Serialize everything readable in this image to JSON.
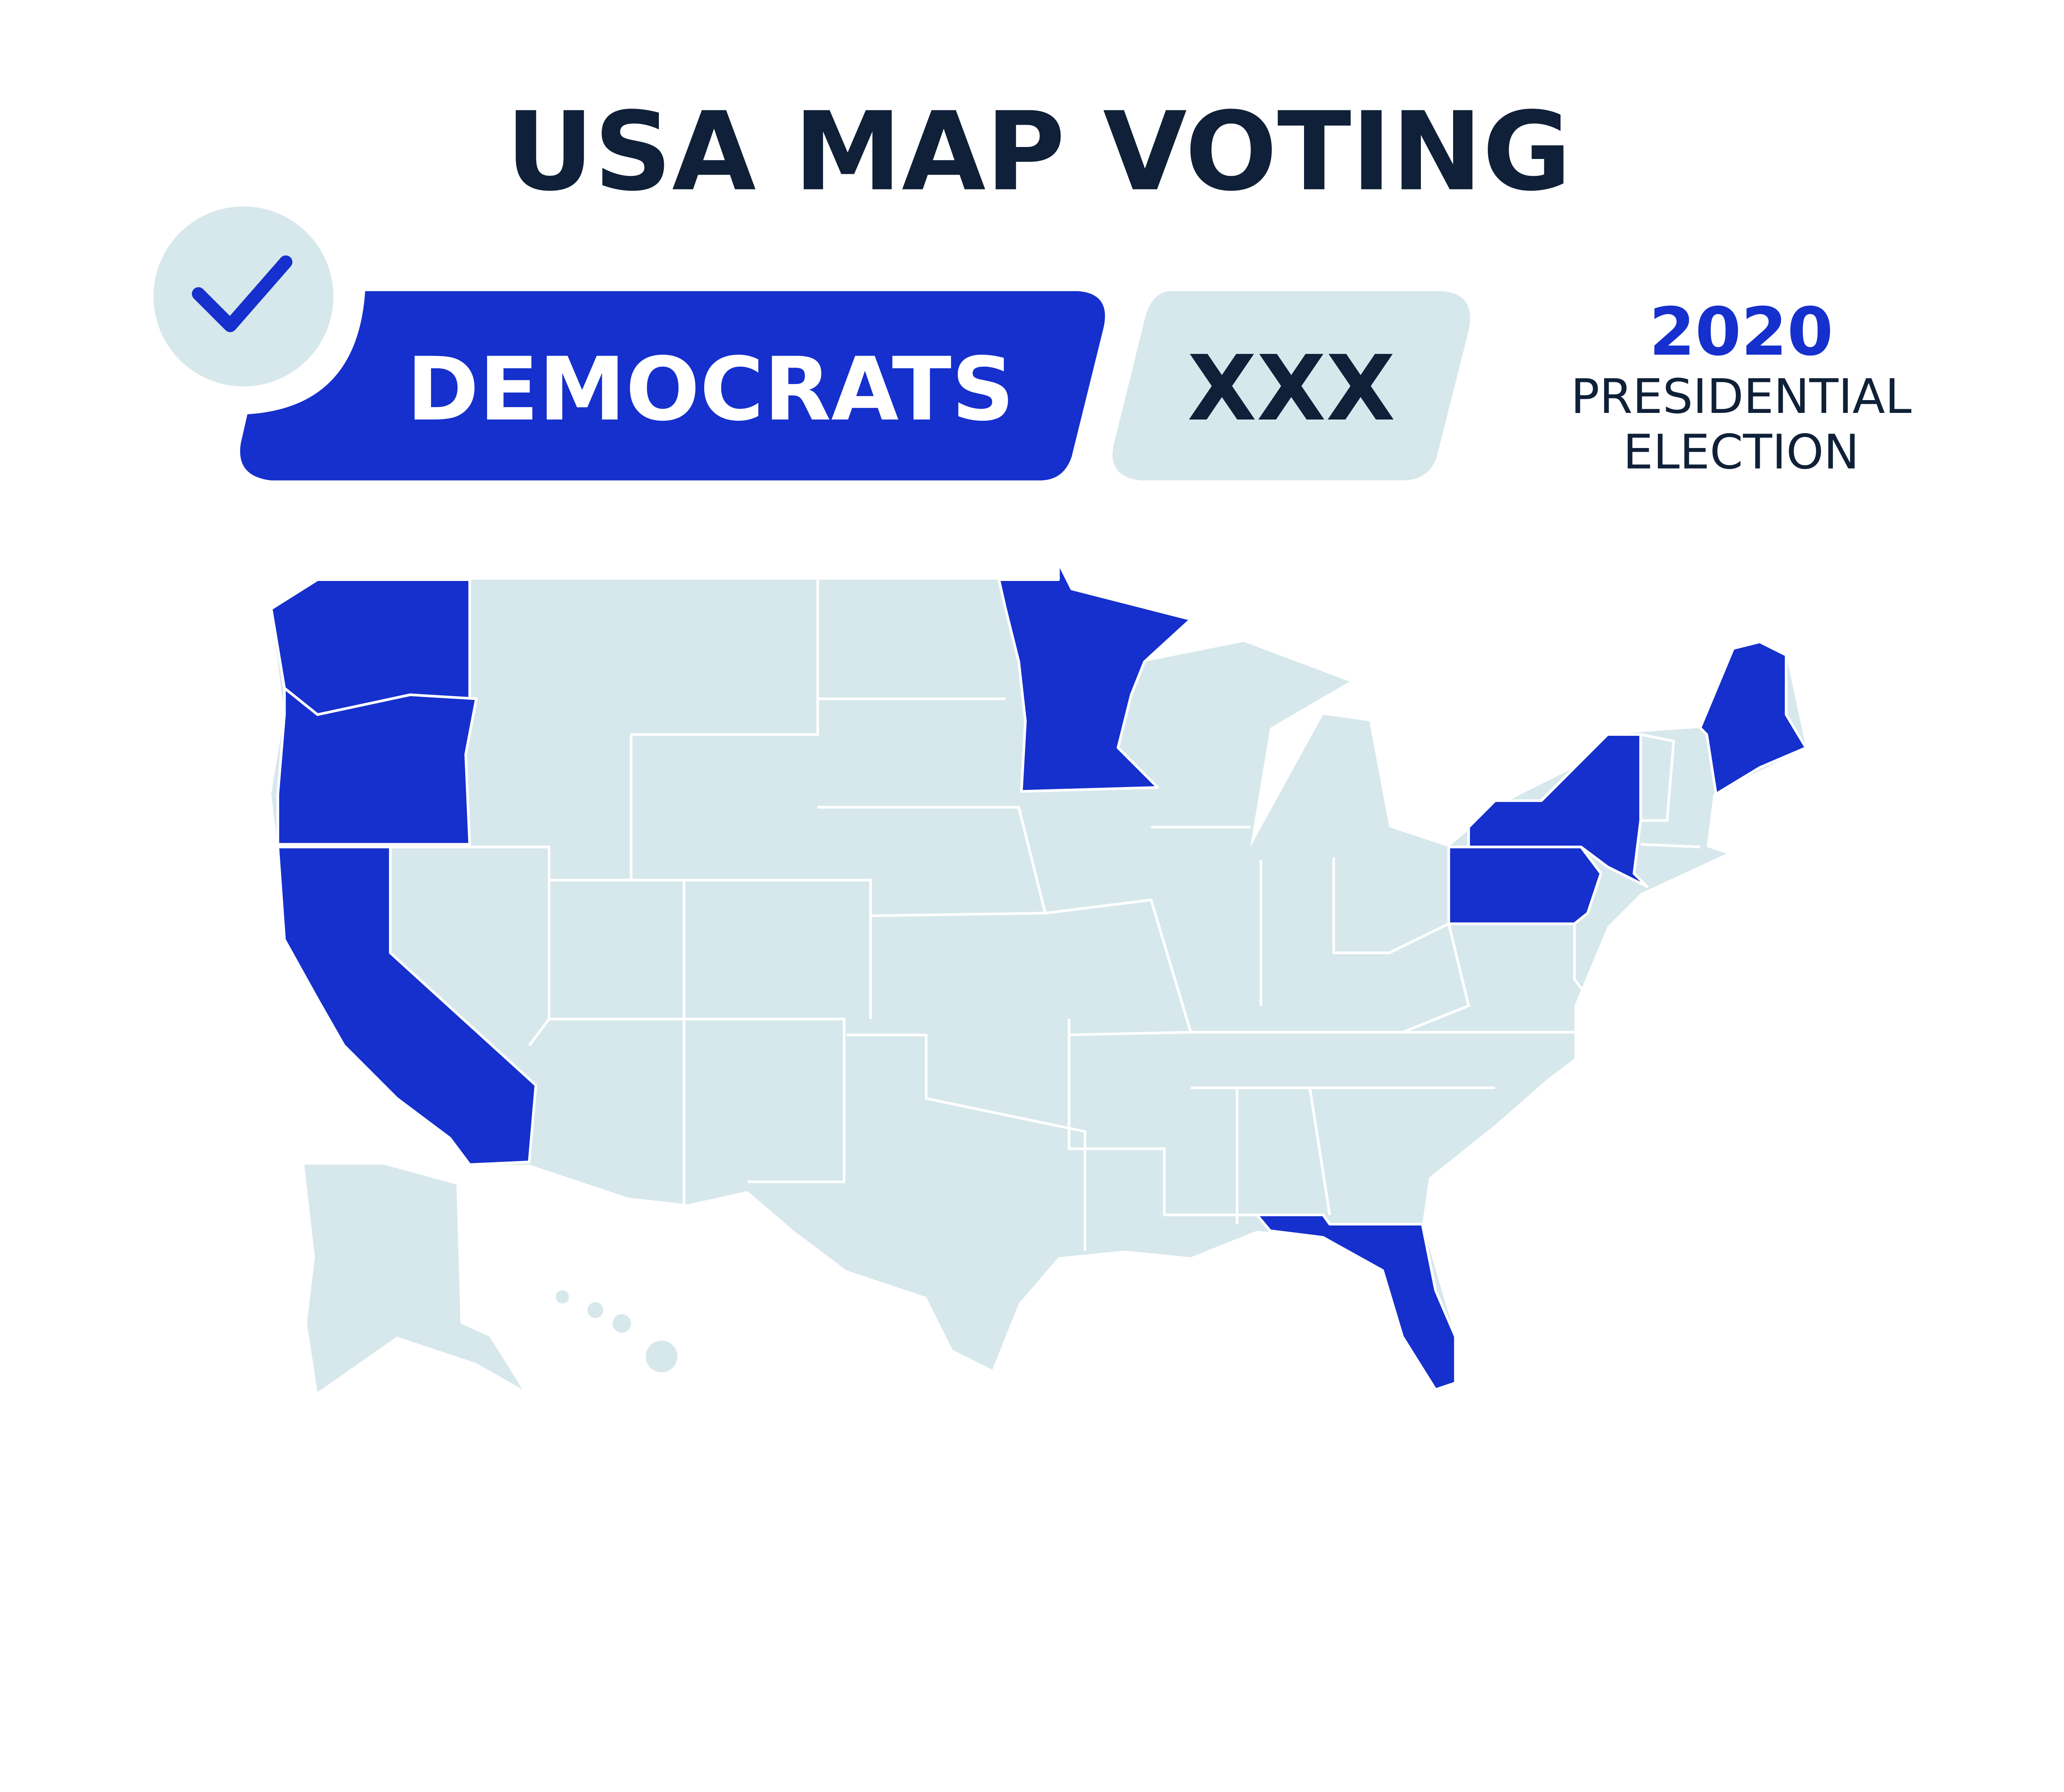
{
  "title": "USA MAP VOTING",
  "party_label": "DEMOCRATS",
  "vote_count": "XXX",
  "year": "2020",
  "subtitle_line1": "PRESIDENTIAL",
  "subtitle_line2": "ELECTION",
  "icons": {
    "check": "checkmark-icon"
  },
  "colors": {
    "democrat": "#1530CC",
    "other": "#D7E8EC",
    "text_dark": "#0F2038"
  },
  "map": {
    "highlighted_states": [
      "Washington",
      "Oregon",
      "California",
      "Minnesota",
      "New York",
      "Pennsylvania",
      "Maine",
      "Florida"
    ]
  }
}
